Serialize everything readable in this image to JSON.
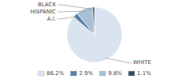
{
  "chart_data": {
    "type": "pie",
    "categories": [
      "WHITE",
      "A.I.",
      "HISPANIC",
      "BLACK"
    ],
    "values": [
      86.2,
      2.9,
      9.8,
      1.1
    ],
    "value_labels": [
      "86.2%",
      "2.9%",
      "9.8%",
      "1.1%"
    ],
    "colors": [
      "#d9e4f0",
      "#5b7fa6",
      "#a8bfd4",
      "#2d4d6b"
    ],
    "legend": "bottom"
  }
}
